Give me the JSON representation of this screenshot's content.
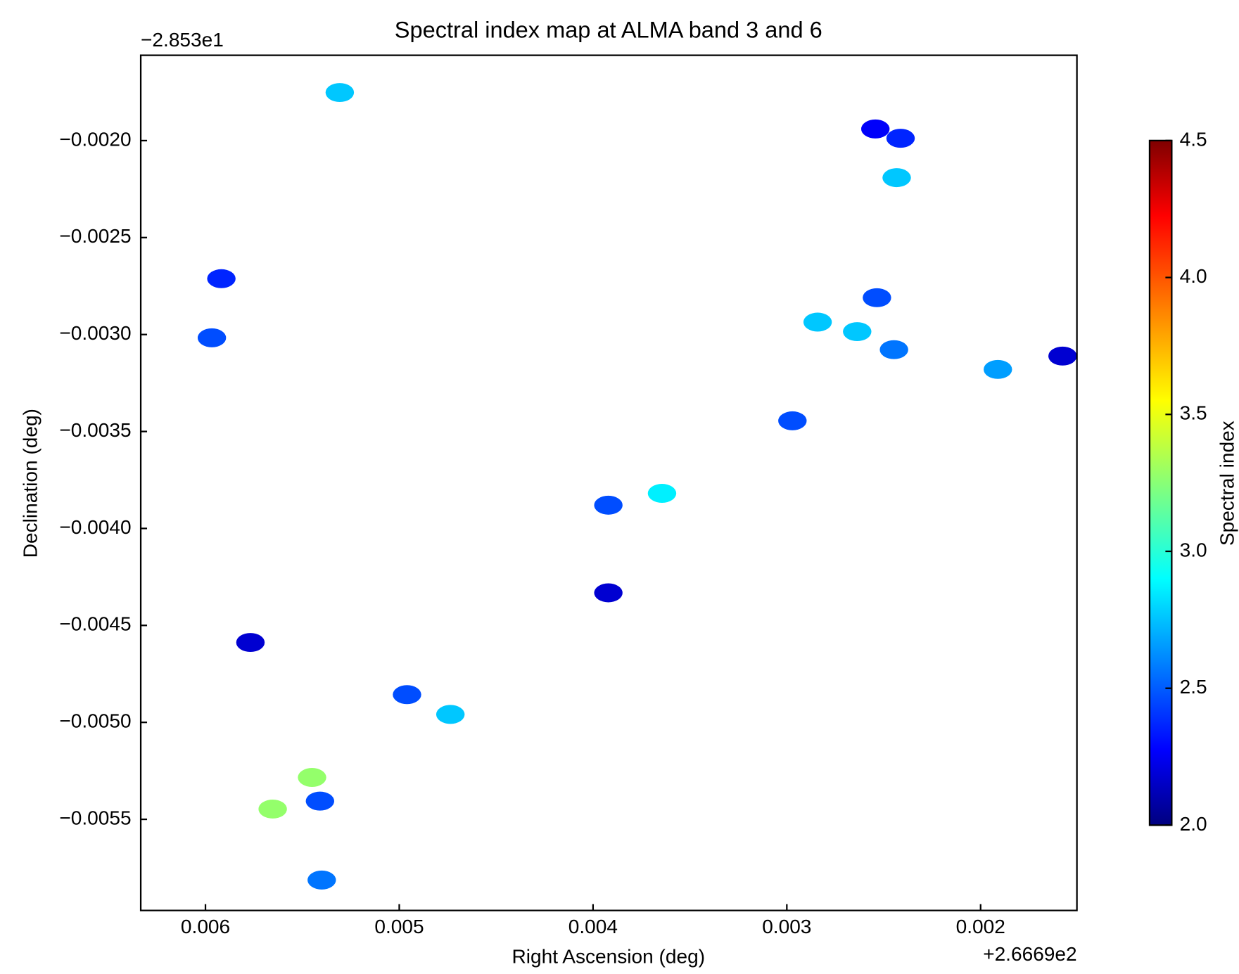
{
  "chart_data": {
    "type": "scatter",
    "title": "Spectral index map at ALMA band 3 and 6",
    "xlabel": "Right Ascension (deg)",
    "ylabel": "Declination (deg)",
    "x_offset_text": "+2.6669e2",
    "y_offset_text": "−2.853e1",
    "x": [
      0.005307,
      0.002413,
      0.002543,
      0.002433,
      0.005918,
      0.005967,
      0.002535,
      0.002637,
      0.002841,
      0.002447,
      0.001911,
      0.001577,
      0.002971,
      0.003644,
      0.003921,
      0.003921,
      0.005768,
      0.00496,
      0.004736,
      0.00545,
      0.005409,
      0.005653,
      0.0054
    ],
    "y": [
      -0.001752,
      -0.001988,
      -0.00194,
      -0.002191,
      -0.002712,
      -0.003017,
      -0.00281,
      -0.002985,
      -0.002936,
      -0.003078,
      -0.00318,
      -0.003111,
      -0.003445,
      -0.003819,
      -0.00388,
      -0.004332,
      -0.004588,
      -0.004857,
      -0.004959,
      -0.005284,
      -0.005406,
      -0.005447,
      -0.005813
    ],
    "values": [
      2.8,
      2.4,
      2.3,
      2.8,
      2.4,
      2.5,
      2.5,
      2.8,
      2.8,
      2.6,
      2.7,
      2.2,
      2.5,
      2.9,
      2.5,
      2.2,
      2.2,
      2.5,
      2.8,
      3.3,
      2.5,
      3.3,
      2.6
    ],
    "colormap": "jet",
    "xlim": [
      0.006334,
      0.001503
    ],
    "ylim": [
      -0.00597,
      -0.00156
    ],
    "xticks": [
      {
        "value": 0.006,
        "label": "0.006"
      },
      {
        "value": 0.005,
        "label": "0.005"
      },
      {
        "value": 0.004,
        "label": "0.004"
      },
      {
        "value": 0.003,
        "label": "0.003"
      },
      {
        "value": 0.002,
        "label": "0.002"
      }
    ],
    "yticks": [
      {
        "value": -0.002,
        "label": "−0.0020"
      },
      {
        "value": -0.0025,
        "label": "−0.0025"
      },
      {
        "value": -0.003,
        "label": "−0.0030"
      },
      {
        "value": -0.0035,
        "label": "−0.0035"
      },
      {
        "value": -0.004,
        "label": "−0.0040"
      },
      {
        "value": -0.0045,
        "label": "−0.0045"
      },
      {
        "value": -0.005,
        "label": "−0.0050"
      },
      {
        "value": -0.0055,
        "label": "−0.0055"
      }
    ],
    "colorbar": {
      "label": "Spectral index",
      "lim": [
        2.0,
        4.5
      ],
      "ticks": [
        {
          "value": 2.0,
          "label": "2.0"
        },
        {
          "value": 2.5,
          "label": "2.5"
        },
        {
          "value": 3.0,
          "label": "3.0"
        },
        {
          "value": 3.5,
          "label": "3.5"
        },
        {
          "value": 4.0,
          "label": "4.0"
        },
        {
          "value": 4.5,
          "label": "4.5"
        }
      ]
    }
  }
}
